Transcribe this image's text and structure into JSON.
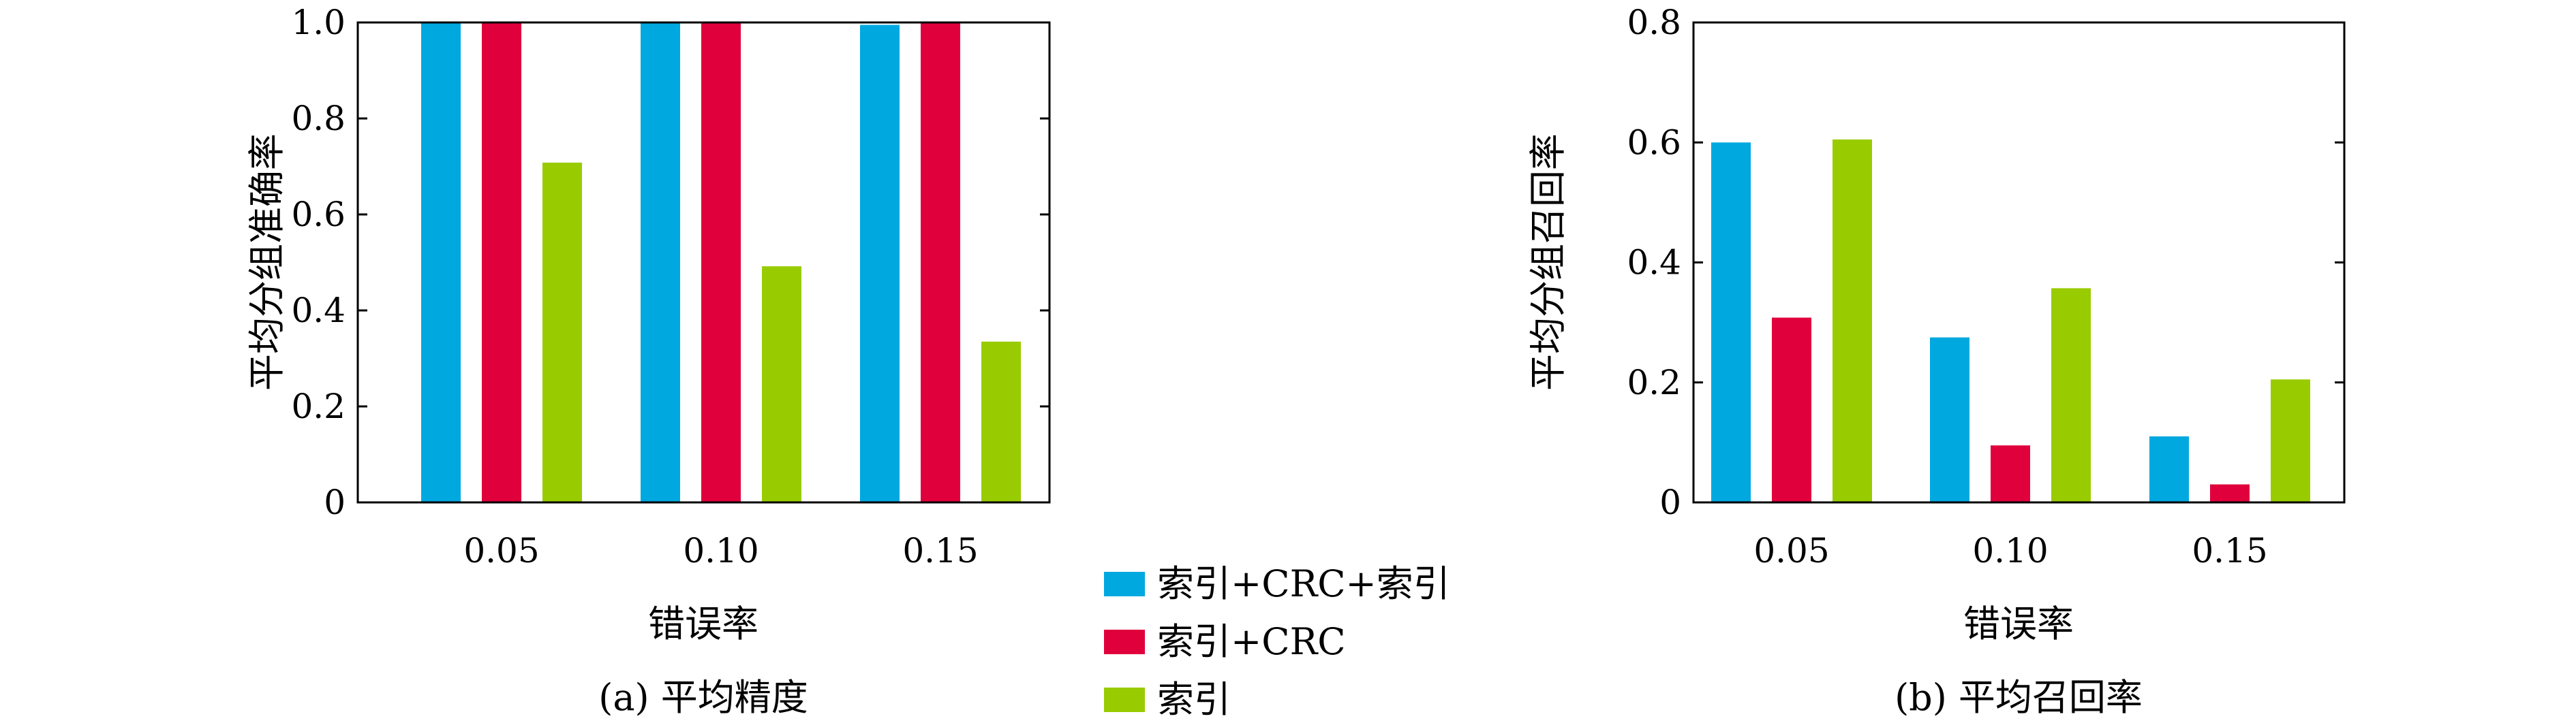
{
  "colors": {
    "series": [
      "#00a8e0",
      "#e0003c",
      "#99cc00"
    ],
    "axis": "#000000"
  },
  "legend": {
    "placement": "center-between-charts",
    "items": [
      "索引+CRC+索引",
      "索引+CRC",
      "索引"
    ]
  },
  "chart_data": [
    {
      "type": "bar",
      "caption": "(a) 平均精度",
      "xlabel": "错误率",
      "ylabel": "平均分组准确率",
      "categories": [
        "0.05",
        "0.10",
        "0.15"
      ],
      "ylim": [
        0,
        1.0
      ],
      "yticks": [
        0,
        0.2,
        0.4,
        0.6,
        0.8,
        1.0
      ],
      "ytick_labels": [
        "0",
        "0.2",
        "0.4",
        "0.6",
        "0.8",
        "1.0"
      ],
      "grid": false,
      "series": [
        {
          "name": "索引+CRC+索引",
          "values": [
            1.0,
            1.0,
            0.995
          ]
        },
        {
          "name": "索引+CRC",
          "values": [
            1.0,
            1.0,
            1.0
          ]
        },
        {
          "name": "索引",
          "values": [
            0.708,
            0.492,
            0.335
          ]
        }
      ]
    },
    {
      "type": "bar",
      "caption": "(b) 平均召回率",
      "xlabel": "错误率",
      "ylabel": "平均分组召回率",
      "categories": [
        "0.05",
        "0.10",
        "0.15"
      ],
      "ylim": [
        0,
        0.8
      ],
      "yticks": [
        0,
        0.2,
        0.4,
        0.6,
        0.8
      ],
      "ytick_labels": [
        "0",
        "0.2",
        "0.4",
        "0.6",
        "0.8"
      ],
      "grid": false,
      "series": [
        {
          "name": "索引+CRC+索引",
          "values": [
            0.6,
            0.275,
            0.11
          ]
        },
        {
          "name": "索引+CRC",
          "values": [
            0.308,
            0.095,
            0.03
          ]
        },
        {
          "name": "索引",
          "values": [
            0.605,
            0.357,
            0.205
          ]
        }
      ]
    }
  ]
}
